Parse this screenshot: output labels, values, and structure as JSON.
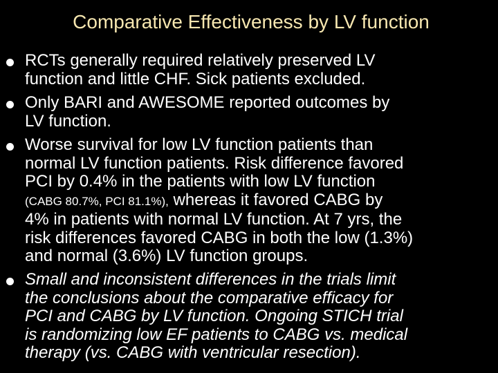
{
  "slide": {
    "title": "Comparative Effectiveness by LV function",
    "title_color": "#f7e7b0",
    "background": "#000000",
    "text_color": "#ffffff",
    "bullets": [
      {
        "lines": [
          "RCTs generally required relatively preserved LV",
          "function and little CHF. Sick patients excluded."
        ]
      },
      {
        "lines": [
          "Only BARI and AWESOME reported outcomes by",
          "LV function."
        ]
      },
      {
        "lines": [
          "Worse survival for low LV function patients than",
          "normal LV function patients. Risk difference favored",
          "PCI by 0.4% in the patients with low LV function"
        ],
        "small_run": "(CABG 80.7%, PCI 81.1%),",
        "line4_rest": " whereas it favored CABG by",
        "lines_after": [
          "4% in patients with normal LV function. At 7 yrs, the",
          "risk differences favored CABG in both the low (1.3%)",
          "and normal (3.6%) LV function groups."
        ]
      },
      {
        "style": "italic",
        "lines": [
          "Small and inconsistent differences in the trials limit",
          "the conclusions about the comparative efficacy for",
          "PCI and CABG by LV function.  Ongoing STICH trial",
          "is randomizing low EF patients to CABG vs. medical",
          "therapy (vs. CABG with ventricular resection)."
        ]
      }
    ]
  }
}
